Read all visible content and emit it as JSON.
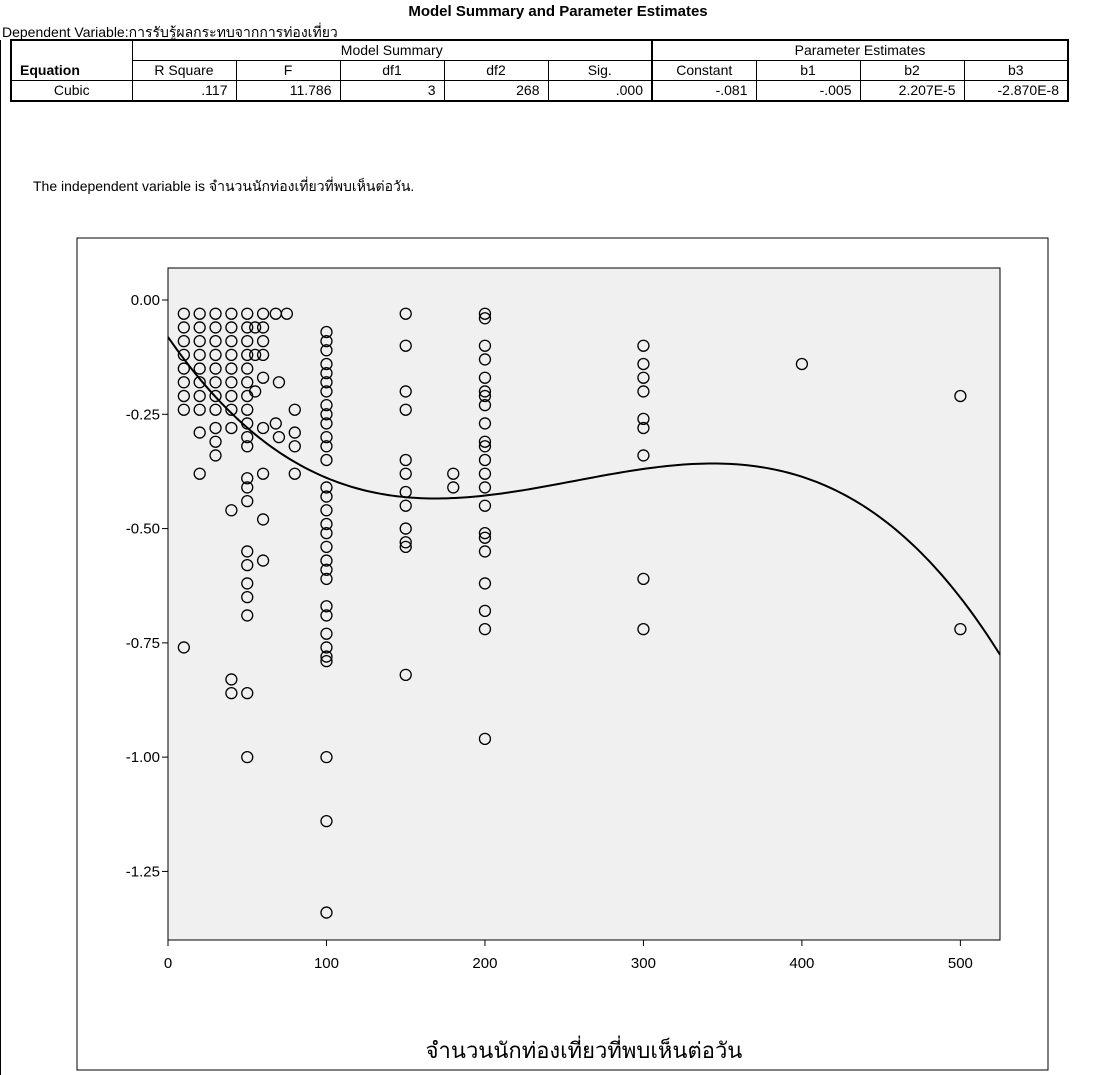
{
  "table": {
    "title": "Model Summary and Parameter Estimates",
    "dependent_variable": "Dependent Variable:การรับรู้ผลกระทบจากการท่องเที่ยว",
    "group_headers": {
      "model_summary": "Model Summary",
      "parameter_estimates": "Parameter Estimates"
    },
    "equation_header": "Equation",
    "columns": [
      "R Square",
      "F",
      "df1",
      "df2",
      "Sig.",
      "Constant",
      "b1",
      "b2",
      "b3"
    ],
    "row": {
      "equation": "Cubic",
      "values": [
        ".117",
        "11.786",
        "3",
        "268",
        ".000",
        "-.081",
        "-.005",
        "2.207E-5",
        "-2.870E-8"
      ]
    },
    "note": "The independent variable is จำนวนนักท่องเที่ยวที่พบเห็นต่อวัน."
  },
  "chart_data": {
    "type": "scatter",
    "xlabel": "จำนวนนักท่องเที่ยวที่พบเห็นต่อวัน",
    "ylabel": "",
    "xlim": [
      0,
      525
    ],
    "ylim": [
      -1.4,
      0.07
    ],
    "xticks": [
      "0",
      "100",
      "200",
      "300",
      "400",
      "500"
    ],
    "yticks": [
      "0.00",
      "-0.25",
      "-0.50",
      "-0.75",
      "-1.00",
      "-1.25"
    ],
    "fit_line": {
      "type": "cubic",
      "constant": -0.081,
      "b1": -0.005,
      "b2": 2.207e-05,
      "b3": -2.87e-08,
      "x_range": [
        0,
        525
      ]
    },
    "points": [
      [
        10,
        -0.03
      ],
      [
        10,
        -0.06
      ],
      [
        10,
        -0.09
      ],
      [
        10,
        -0.12
      ],
      [
        10,
        -0.15
      ],
      [
        10,
        -0.18
      ],
      [
        10,
        -0.21
      ],
      [
        10,
        -0.24
      ],
      [
        10,
        -0.76
      ],
      [
        20,
        -0.03
      ],
      [
        20,
        -0.06
      ],
      [
        20,
        -0.09
      ],
      [
        20,
        -0.12
      ],
      [
        20,
        -0.15
      ],
      [
        20,
        -0.18
      ],
      [
        20,
        -0.21
      ],
      [
        20,
        -0.24
      ],
      [
        20,
        -0.29
      ],
      [
        20,
        -0.38
      ],
      [
        30,
        -0.03
      ],
      [
        30,
        -0.06
      ],
      [
        30,
        -0.09
      ],
      [
        30,
        -0.12
      ],
      [
        30,
        -0.15
      ],
      [
        30,
        -0.18
      ],
      [
        30,
        -0.21
      ],
      [
        30,
        -0.24
      ],
      [
        30,
        -0.28
      ],
      [
        30,
        -0.31
      ],
      [
        30,
        -0.34
      ],
      [
        40,
        -0.03
      ],
      [
        40,
        -0.06
      ],
      [
        40,
        -0.09
      ],
      [
        40,
        -0.12
      ],
      [
        40,
        -0.15
      ],
      [
        40,
        -0.18
      ],
      [
        40,
        -0.21
      ],
      [
        40,
        -0.24
      ],
      [
        40,
        -0.28
      ],
      [
        40,
        -0.46
      ],
      [
        40,
        -0.83
      ],
      [
        40,
        -0.86
      ],
      [
        50,
        -0.03
      ],
      [
        50,
        -0.06
      ],
      [
        50,
        -0.09
      ],
      [
        50,
        -0.12
      ],
      [
        50,
        -0.15
      ],
      [
        50,
        -0.18
      ],
      [
        50,
        -0.21
      ],
      [
        50,
        -0.24
      ],
      [
        50,
        -0.27
      ],
      [
        50,
        -0.3
      ],
      [
        50,
        -0.32
      ],
      [
        50,
        -0.39
      ],
      [
        50,
        -0.41
      ],
      [
        50,
        -0.44
      ],
      [
        50,
        -0.55
      ],
      [
        50,
        -0.58
      ],
      [
        50,
        -0.62
      ],
      [
        50,
        -0.65
      ],
      [
        50,
        -0.69
      ],
      [
        50,
        -0.86
      ],
      [
        50,
        -1.0
      ],
      [
        55,
        -0.06
      ],
      [
        55,
        -0.12
      ],
      [
        55,
        -0.2
      ],
      [
        60,
        -0.03
      ],
      [
        60,
        -0.06
      ],
      [
        60,
        -0.09
      ],
      [
        60,
        -0.12
      ],
      [
        60,
        -0.17
      ],
      [
        60,
        -0.28
      ],
      [
        60,
        -0.38
      ],
      [
        60,
        -0.48
      ],
      [
        60,
        -0.57
      ],
      [
        68,
        -0.03
      ],
      [
        68,
        -0.27
      ],
      [
        70,
        -0.18
      ],
      [
        70,
        -0.3
      ],
      [
        75,
        -0.03
      ],
      [
        80,
        -0.24
      ],
      [
        80,
        -0.29
      ],
      [
        80,
        -0.32
      ],
      [
        80,
        -0.38
      ],
      [
        100,
        -0.07
      ],
      [
        100,
        -0.09
      ],
      [
        100,
        -0.11
      ],
      [
        100,
        -0.14
      ],
      [
        100,
        -0.16
      ],
      [
        100,
        -0.18
      ],
      [
        100,
        -0.2
      ],
      [
        100,
        -0.23
      ],
      [
        100,
        -0.25
      ],
      [
        100,
        -0.27
      ],
      [
        100,
        -0.3
      ],
      [
        100,
        -0.32
      ],
      [
        100,
        -0.35
      ],
      [
        100,
        -0.41
      ],
      [
        100,
        -0.43
      ],
      [
        100,
        -0.46
      ],
      [
        100,
        -0.49
      ],
      [
        100,
        -0.51
      ],
      [
        100,
        -0.54
      ],
      [
        100,
        -0.57
      ],
      [
        100,
        -0.59
      ],
      [
        100,
        -0.61
      ],
      [
        100,
        -0.67
      ],
      [
        100,
        -0.69
      ],
      [
        100,
        -0.73
      ],
      [
        100,
        -0.76
      ],
      [
        100,
        -0.78
      ],
      [
        100,
        -0.79
      ],
      [
        100,
        -1.0
      ],
      [
        100,
        -1.14
      ],
      [
        100,
        -1.34
      ],
      [
        150,
        -0.03
      ],
      [
        150,
        -0.1
      ],
      [
        150,
        -0.2
      ],
      [
        150,
        -0.24
      ],
      [
        150,
        -0.35
      ],
      [
        150,
        -0.38
      ],
      [
        150,
        -0.42
      ],
      [
        150,
        -0.45
      ],
      [
        150,
        -0.5
      ],
      [
        150,
        -0.53
      ],
      [
        150,
        -0.54
      ],
      [
        150,
        -0.82
      ],
      [
        180,
        -0.38
      ],
      [
        180,
        -0.41
      ],
      [
        200,
        -0.03
      ],
      [
        200,
        -0.04
      ],
      [
        200,
        -0.1
      ],
      [
        200,
        -0.13
      ],
      [
        200,
        -0.17
      ],
      [
        200,
        -0.2
      ],
      [
        200,
        -0.21
      ],
      [
        200,
        -0.23
      ],
      [
        200,
        -0.27
      ],
      [
        200,
        -0.31
      ],
      [
        200,
        -0.32
      ],
      [
        200,
        -0.35
      ],
      [
        200,
        -0.38
      ],
      [
        200,
        -0.41
      ],
      [
        200,
        -0.45
      ],
      [
        200,
        -0.51
      ],
      [
        200,
        -0.52
      ],
      [
        200,
        -0.55
      ],
      [
        200,
        -0.62
      ],
      [
        200,
        -0.68
      ],
      [
        200,
        -0.72
      ],
      [
        200,
        -0.96
      ],
      [
        300,
        -0.1
      ],
      [
        300,
        -0.14
      ],
      [
        300,
        -0.17
      ],
      [
        300,
        -0.2
      ],
      [
        300,
        -0.26
      ],
      [
        300,
        -0.28
      ],
      [
        300,
        -0.34
      ],
      [
        300,
        -0.61
      ],
      [
        300,
        -0.72
      ],
      [
        400,
        -0.14
      ],
      [
        500,
        -0.21
      ],
      [
        500,
        -0.72
      ]
    ]
  }
}
